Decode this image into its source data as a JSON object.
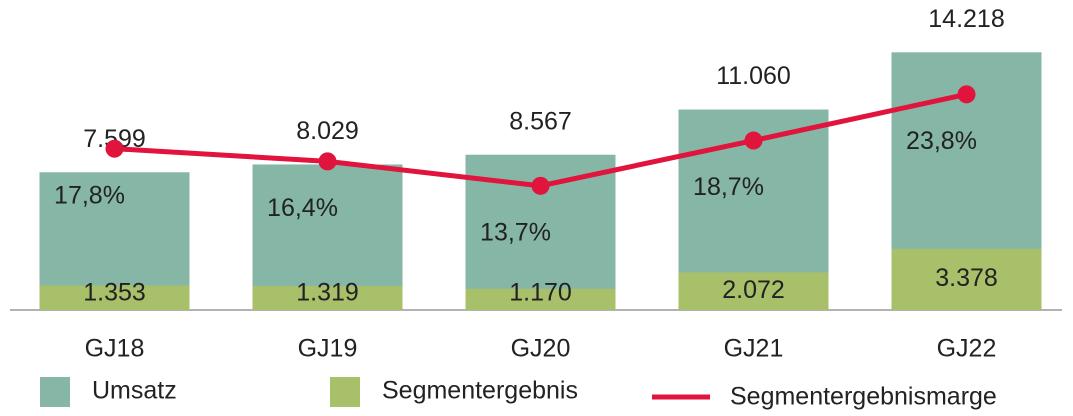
{
  "chart_data": {
    "type": "bar",
    "categories": [
      "GJ18",
      "GJ19",
      "GJ20",
      "GJ21",
      "GJ22"
    ],
    "ylim": [
      0,
      16000
    ],
    "y2lim": [
      0,
      32
    ],
    "series": [
      {
        "name": "Umsatz",
        "color": "#86b6a6",
        "values": [
          7599,
          8029,
          8567,
          11060,
          14218
        ],
        "value_labels": [
          "7.599",
          "8.029",
          "8.567",
          "11.060",
          "14.218"
        ]
      },
      {
        "name": "Segmentergebnis",
        "color": "#a9c06a",
        "values": [
          1353,
          1319,
          1170,
          2072,
          3378
        ],
        "value_labels": [
          "1.353",
          "1.319",
          "1.170",
          "2.072",
          "3.378"
        ]
      },
      {
        "name": "Segmentergebnismarge",
        "color": "#e0143c",
        "axis": "y2",
        "values": [
          17.8,
          16.4,
          13.7,
          18.7,
          23.8
        ],
        "value_labels": [
          "17,8%",
          "16,4%",
          "13,7%",
          "18,7%",
          "23,8%"
        ]
      }
    ]
  }
}
